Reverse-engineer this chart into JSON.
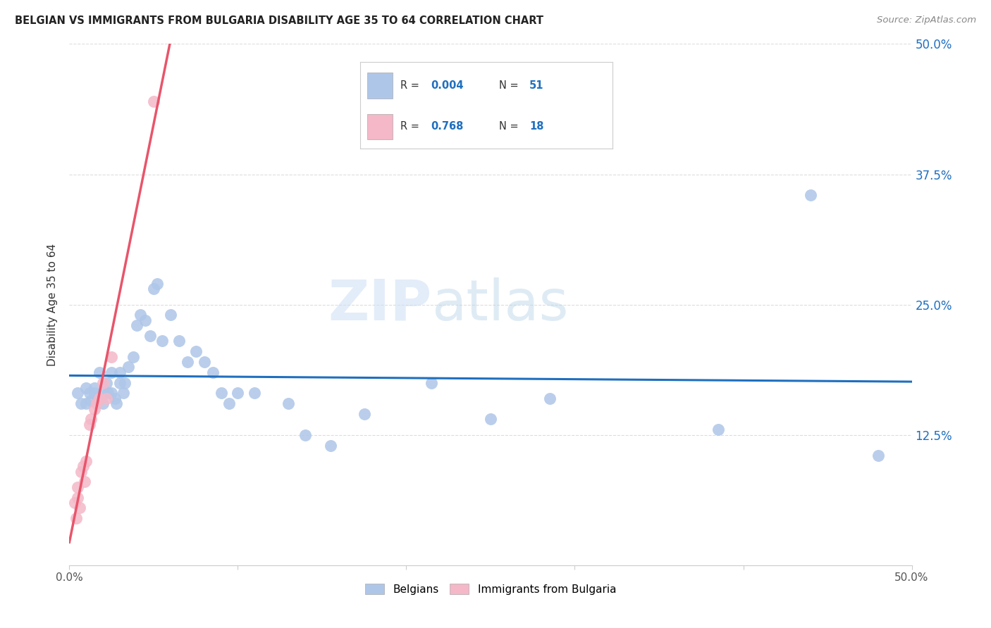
{
  "title": "BELGIAN VS IMMIGRANTS FROM BULGARIA DISABILITY AGE 35 TO 64 CORRELATION CHART",
  "source": "Source: ZipAtlas.com",
  "ylabel": "Disability Age 35 to 64",
  "xlim": [
    0.0,
    0.5
  ],
  "ylim": [
    0.0,
    0.5
  ],
  "yticks": [
    0.0,
    0.125,
    0.25,
    0.375,
    0.5
  ],
  "ytick_labels_right": [
    "",
    "12.5%",
    "25.0%",
    "37.5%",
    "50.0%"
  ],
  "xticks": [
    0.0,
    0.1,
    0.2,
    0.3,
    0.4,
    0.5
  ],
  "xtick_labels": [
    "0.0%",
    "",
    "",
    "",
    "",
    "50.0%"
  ],
  "belgian_color": "#aec6e8",
  "bulgarian_color": "#f4b8c8",
  "trend_blue": "#1f6fbf",
  "trend_pink": "#e8556a",
  "trend_gray": "#c8c8c8",
  "legend_R_belgian": "0.004",
  "legend_N_belgian": "51",
  "legend_R_bulgarian": "0.768",
  "legend_N_bulgarian": "18",
  "watermark_zip": "ZIP",
  "watermark_atlas": "atlas",
  "belgians_x": [
    0.005,
    0.007,
    0.01,
    0.01,
    0.012,
    0.013,
    0.015,
    0.015,
    0.017,
    0.018,
    0.02,
    0.02,
    0.022,
    0.023,
    0.025,
    0.025,
    0.027,
    0.028,
    0.03,
    0.03,
    0.032,
    0.033,
    0.035,
    0.038,
    0.04,
    0.042,
    0.045,
    0.048,
    0.05,
    0.052,
    0.055,
    0.06,
    0.065,
    0.07,
    0.075,
    0.08,
    0.085,
    0.09,
    0.095,
    0.1,
    0.11,
    0.13,
    0.14,
    0.155,
    0.175,
    0.215,
    0.25,
    0.285,
    0.385,
    0.44,
    0.48
  ],
  "belgians_y": [
    0.165,
    0.155,
    0.17,
    0.155,
    0.165,
    0.158,
    0.165,
    0.17,
    0.16,
    0.185,
    0.155,
    0.165,
    0.175,
    0.165,
    0.165,
    0.185,
    0.16,
    0.155,
    0.175,
    0.185,
    0.165,
    0.175,
    0.19,
    0.2,
    0.23,
    0.24,
    0.235,
    0.22,
    0.265,
    0.27,
    0.215,
    0.24,
    0.215,
    0.195,
    0.205,
    0.195,
    0.185,
    0.165,
    0.155,
    0.165,
    0.165,
    0.155,
    0.125,
    0.115,
    0.145,
    0.175,
    0.14,
    0.16,
    0.13,
    0.355,
    0.105
  ],
  "bulgarians_x": [
    0.003,
    0.004,
    0.005,
    0.005,
    0.006,
    0.007,
    0.008,
    0.009,
    0.01,
    0.012,
    0.013,
    0.015,
    0.016,
    0.018,
    0.02,
    0.022,
    0.025,
    0.05
  ],
  "bulgarians_y": [
    0.06,
    0.045,
    0.065,
    0.075,
    0.055,
    0.09,
    0.095,
    0.08,
    0.1,
    0.135,
    0.14,
    0.15,
    0.155,
    0.16,
    0.175,
    0.16,
    0.2,
    0.445
  ]
}
